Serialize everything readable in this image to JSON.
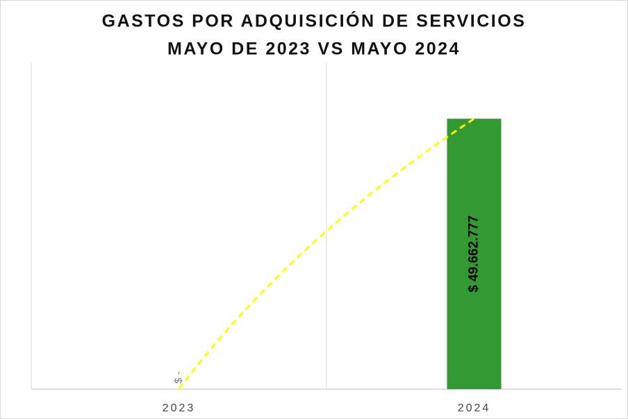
{
  "chart_data": {
    "type": "bar",
    "title": [
      "GASTOS POR ADQUISICIÓN DE SERVICIOS",
      "MAYO DE 2023 VS MAYO 2024"
    ],
    "categories": [
      "2023",
      "2024"
    ],
    "values": [
      0,
      49662777
    ],
    "value_labels": [
      "$ -",
      "$ 49.662.777"
    ],
    "color": "#339933",
    "ylim": [
      0,
      60000000
    ],
    "trendline": {
      "type": "logarithmic",
      "color": "#ffff00"
    }
  }
}
